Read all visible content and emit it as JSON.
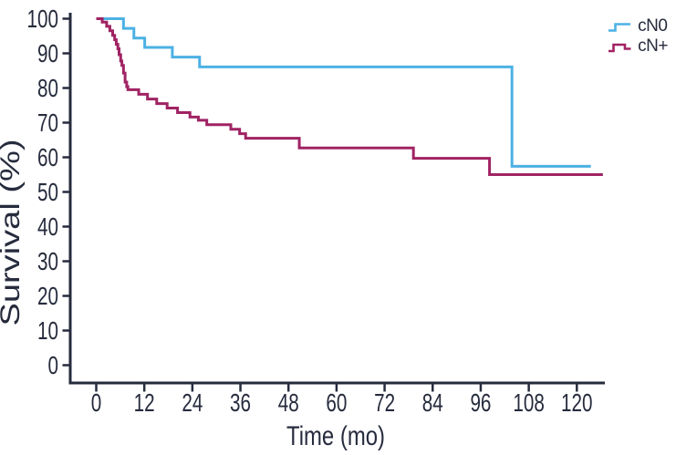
{
  "figure": {
    "title": "",
    "background": "#ffffff"
  },
  "colors": {
    "text": "#262b3d",
    "axis": "#262b3d",
    "cn0_blue": "#4cb1e4",
    "cnplus_red": "#a02363"
  },
  "legend": {
    "position": "top-right",
    "items": [
      {
        "label": "cN0",
        "color": "#4cb1e4"
      },
      {
        "label": "cN+",
        "color": "#a02363"
      }
    ]
  },
  "chart_data": {
    "type": "line",
    "subtype": "kaplan-meier-step",
    "title": "",
    "xlabel": "Time (mo)",
    "ylabel": "Survival (%)",
    "xlim": [
      -6.5,
      127
    ],
    "ylim": [
      0,
      100
    ],
    "x_ticks": [
      0,
      12,
      24,
      36,
      48,
      60,
      72,
      84,
      96,
      108,
      120
    ],
    "y_ticks": [
      0,
      10,
      20,
      30,
      40,
      50,
      60,
      70,
      80,
      90,
      100
    ],
    "grid": false,
    "legend_position": "top-right",
    "series": [
      {
        "name": "cN0",
        "color": "#4cb1e4",
        "start": [
          0,
          100
        ],
        "drops": [
          [
            6.8,
            97.2
          ],
          [
            9.4,
            94.4
          ],
          [
            12.1,
            91.7
          ],
          [
            19,
            88.9
          ],
          [
            25.8,
            86.1
          ],
          [
            103.8,
            57.4
          ]
        ],
        "end_time": 123.5,
        "end_value": 57.4
      },
      {
        "name": "cN+",
        "color": "#a02363",
        "start": [
          0,
          100
        ],
        "drops": [
          [
            1.5,
            99
          ],
          [
            2.6,
            97.8
          ],
          [
            3.4,
            96.5
          ],
          [
            4.1,
            95.2
          ],
          [
            4.6,
            93.9
          ],
          [
            5,
            92.6
          ],
          [
            5.4,
            91.3
          ],
          [
            5.7,
            89.6
          ],
          [
            6.1,
            87.8
          ],
          [
            6.4,
            86.5
          ],
          [
            6.8,
            84.3
          ],
          [
            7.2,
            81.7
          ],
          [
            7.6,
            80.4
          ],
          [
            7.9,
            79.5
          ],
          [
            10.6,
            78.2
          ],
          [
            12.8,
            76.8
          ],
          [
            15.1,
            75.5
          ],
          [
            17.7,
            74.2
          ],
          [
            20.3,
            72.9
          ],
          [
            23.4,
            71.6
          ],
          [
            25.5,
            70.7
          ],
          [
            27.6,
            69.4
          ],
          [
            33.6,
            68.1
          ],
          [
            35.8,
            66.8
          ],
          [
            37.3,
            65.5
          ],
          [
            50.7,
            62.7
          ],
          [
            79.2,
            59.7
          ],
          [
            98.2,
            55
          ]
        ],
        "end_time": 126.5,
        "end_value": 55
      }
    ]
  }
}
